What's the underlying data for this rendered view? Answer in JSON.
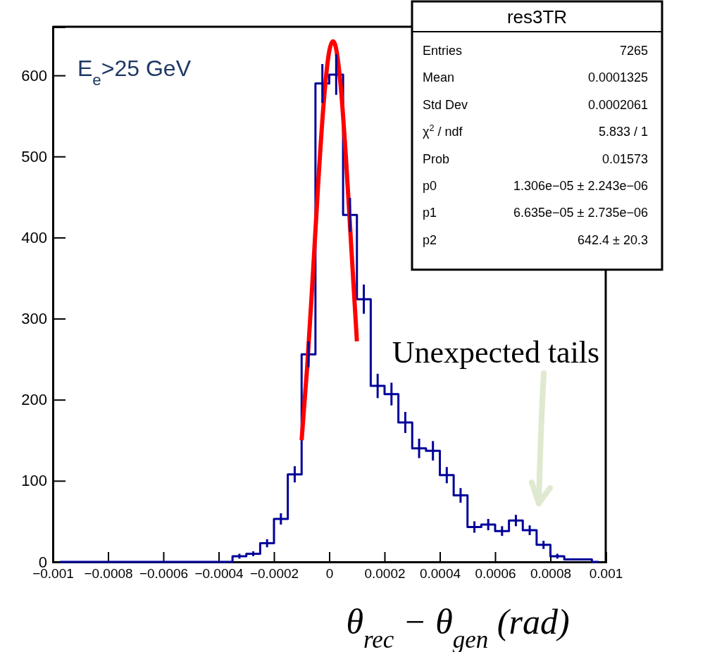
{
  "chart_data": {
    "type": "step",
    "xlabel": "θ$_{rec}$ − θ$_{gen}$ (rad)",
    "x": [
      -0.000975,
      -0.000925,
      -0.000875,
      -0.000825,
      -0.000775,
      -0.000725,
      -0.000675,
      -0.000625,
      -0.000575,
      -0.000525,
      -0.000475,
      -0.000425,
      -0.000375,
      -0.000325,
      -0.000275,
      -0.000225,
      -0.000175,
      -0.000125,
      -7.5e-05,
      -2.5e-05,
      2.5e-05,
      7.5e-05,
      0.000125,
      0.000175,
      0.000225,
      0.000275,
      0.000325,
      0.000375,
      0.000425,
      0.000475,
      0.000525,
      0.000575,
      0.000625,
      0.000675,
      0.000725,
      0.000775,
      0.000825,
      0.000875,
      0.000925,
      0.000975
    ],
    "series": [
      {
        "color": "#000099",
        "values": [
          0,
          0,
          0,
          0,
          0,
          0,
          0,
          0,
          0,
          0,
          0,
          0,
          0,
          7,
          10,
          23,
          53,
          108,
          256,
          590,
          601,
          428,
          324,
          217,
          207,
          172,
          140,
          137,
          107,
          82,
          43,
          46,
          38,
          51,
          39,
          21,
          7,
          3,
          3,
          0
        ],
        "errors": [
          null,
          null,
          null,
          null,
          null,
          null,
          null,
          null,
          null,
          null,
          null,
          null,
          null,
          3,
          3,
          5,
          7,
          10,
          16,
          24,
          25,
          21,
          18,
          15,
          14,
          13,
          12,
          12,
          10,
          9,
          7,
          7,
          6,
          7,
          6,
          5,
          3,
          null,
          null,
          null
        ]
      },
      {
        "type": "line",
        "color": "#ff0000",
        "x": [
          -0.0001,
          -8e-05,
          -6e-05,
          -4e-05,
          -2e-05,
          0,
          1.306e-05,
          2e-05,
          4e-05,
          6e-05,
          8e-05,
          0.0001
        ],
        "values": [
          150,
          240,
          350,
          467,
          567,
          630,
          642,
          639,
          592,
          500,
          386,
          272
        ]
      }
    ],
    "xlim": [
      -0.001,
      0.001
    ],
    "xticks": [
      {
        "value": -0.001,
        "label": "−0.001"
      },
      {
        "value": -0.0008,
        "label": "−0.0008"
      },
      {
        "value": -0.0006,
        "label": "−0.0006"
      },
      {
        "value": -0.0004,
        "label": "−0.0004"
      },
      {
        "value": -0.0002,
        "label": "−0.0002"
      },
      0,
      0.0002,
      0.0004,
      0.0006,
      0.0008,
      0.001
    ],
    "ylim": [
      0,
      660
    ],
    "yticks": [
      0,
      100,
      200,
      300,
      400,
      500,
      600
    ],
    "marker": "none",
    "grid": false,
    "annotations": [
      "E$_{e}$>25 GeV",
      "Unexpected tails",
      "res3TR",
      "Entries",
      "7265",
      "Mean",
      "0.0001325",
      "Std Dev",
      "0.0002061",
      "χ$^{2}$ / ndf",
      "5.833 / 1",
      "Prob",
      "0.01573",
      "p0",
      "1.306e−05 ± 2.243e−06",
      "p1",
      "6.635e−05 ± 2.735e−06",
      "p2",
      "642.4 ± 20.3"
    ]
  }
}
